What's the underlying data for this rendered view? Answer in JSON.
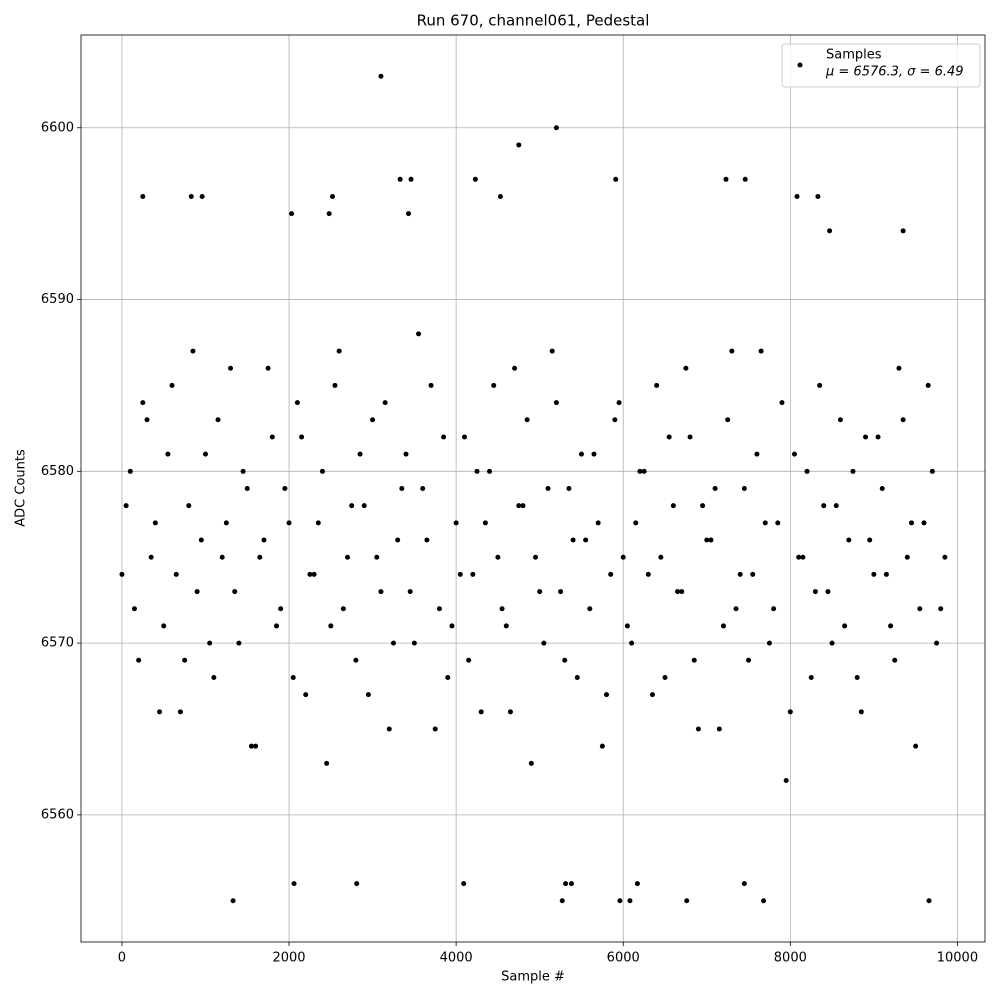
{
  "chart_data": {
    "type": "scatter",
    "title": "Run 670, channel061, Pedestal",
    "xlabel": "Sample #",
    "ylabel": "ADC Counts",
    "xlim": [
      -490,
      10330
    ],
    "ylim": [
      6552.6,
      6605.4
    ],
    "xticks": [
      0,
      2000,
      4000,
      6000,
      8000,
      10000
    ],
    "yticks": [
      6560,
      6570,
      6580,
      6590,
      6600
    ],
    "grid": true,
    "legend": "upper right",
    "series": [
      {
        "name": "Samples",
        "annotation": "μ = 6576.3, σ = 6.49",
        "color": "#000000",
        "x": [
          0,
          100,
          200,
          300,
          400,
          500,
          600,
          700,
          800,
          900,
          1000,
          1100,
          1200,
          1300,
          1400,
          1500,
          1600,
          1700,
          1800,
          1900,
          2000,
          2100,
          2200,
          2300,
          2400,
          2500,
          2600,
          2700,
          2800,
          2900,
          3000,
          3100,
          3200,
          3300,
          3400,
          3500,
          3600,
          3700,
          3800,
          3900,
          4000,
          4100,
          4200,
          4300,
          4400,
          4500,
          4600,
          4700,
          4800,
          4900,
          5000,
          5100,
          5200,
          5300,
          5400,
          5500,
          5600,
          5700,
          5800,
          5900,
          6000,
          6100,
          6200,
          6300,
          6400,
          6500,
          6600,
          6700,
          6800,
          6900,
          7000,
          7100,
          7200,
          7300,
          7400,
          7500,
          7600,
          7700,
          7800,
          7900,
          8000,
          8100,
          8200,
          8300,
          8400,
          8500,
          8600,
          8700,
          8800,
          8900,
          9000,
          9100,
          9200,
          9300,
          9400,
          9500,
          9600,
          9700,
          9800,
          50,
          150,
          250,
          350,
          450,
          550,
          650,
          750,
          850,
          950,
          1050,
          1150,
          1250,
          1350,
          1450,
          1550,
          1650,
          1750,
          1850,
          1950,
          2050,
          2150,
          2250,
          2350,
          2450,
          2550,
          2650,
          2750,
          2850,
          2950,
          3050,
          3150,
          3250,
          3350,
          3450,
          3550,
          3650,
          3750,
          3850,
          3950,
          4050,
          4150,
          4250,
          4350,
          4450,
          4550,
          4650,
          4750,
          4850,
          4950,
          5050,
          5150,
          5250,
          5350,
          5450,
          5550,
          5650,
          5750,
          5850,
          5950,
          6050,
          6150,
          6250,
          6350,
          6450,
          6550,
          6650,
          6750,
          6850,
          6950,
          7050,
          7150,
          7250,
          7350,
          7450,
          7550,
          7650,
          7750,
          7850,
          7950,
          8050,
          8150,
          8250,
          8350,
          8450,
          8550,
          8650,
          8750,
          8850,
          8950,
          9050,
          9150,
          9250,
          9350,
          9450,
          9550,
          9650,
          9750,
          9850,
          3100,
          5200,
          4750,
          1330,
          5270,
          5960,
          6080,
          6760,
          7680,
          9660,
          2810,
          4090,
          2060,
          5310,
          5380,
          6170,
          7450,
          250,
          830,
          960,
          2520,
          4530,
          8330,
          8080,
          3330,
          3460,
          4230,
          5910,
          7230,
          7460,
          2030,
          2480,
          3430,
          8470,
          9350
        ],
        "y": [
          6574,
          6580,
          6569,
          6583,
          6577,
          6571,
          6585,
          6566,
          6578,
          6573,
          6581,
          6568,
          6575,
          6586,
          6570,
          6579,
          6564,
          6576,
          6582,
          6572,
          6577,
          6584,
          6567,
          6574,
          6580,
          6571,
          6587,
          6575,
          6569,
          6578,
          6583,
          6573,
          6565,
          6576,
          6581,
          6570,
          6579,
          6585,
          6572,
          6568,
          6577,
          6582,
          6574,
          6566,
          6580,
          6575,
          6571,
          6586,
          6578,
          6563,
          6573,
          6579,
          6584,
          6569,
          6576,
          6581,
          6572,
          6577,
          6567,
          6583,
          6575,
          6570,
          6580,
          6574,
          6585,
          6568,
          6578,
          6573,
          6582,
          6565,
          6576,
          6579,
          6571,
          6587,
          6574,
          6569,
          6581,
          6577,
          6572,
          6584,
          6566,
          6575,
          6580,
          6573,
          6578,
          6570,
          6583,
          6576,
          6568,
          6582,
          6574,
          6579,
          6571,
          6586,
          6575,
          6564,
          6577,
          6580,
          6572,
          6578,
          6572,
          6584,
          6575,
          6566,
          6581,
          6574,
          6569,
          6587,
          6576,
          6570,
          6583,
          6577,
          6573,
          6580,
          6564,
          6575,
          6586,
          6571,
          6579,
          6568,
          6582,
          6574,
          6577,
          6563,
          6585,
          6572,
          6578,
          6581,
          6567,
          6575,
          6584,
          6570,
          6579,
          6573,
          6588,
          6576,
          6565,
          6582,
          6571,
          6574,
          6569,
          6580,
          6577,
          6585,
          6572,
          6566,
          6578,
          6583,
          6575,
          6570,
          6587,
          6573,
          6579,
          6568,
          6576,
          6581,
          6564,
          6574,
          6584,
          6571,
          6577,
          6580,
          6567,
          6575,
          6582,
          6573,
          6586,
          6569,
          6578,
          6576,
          6565,
          6583,
          6572,
          6579,
          6574,
          6587,
          6570,
          6577,
          6562,
          6581,
          6575,
          6568,
          6585,
          6573,
          6578,
          6571,
          6580,
          6566,
          6576,
          6582,
          6574,
          6569,
          6583,
          6577,
          6572,
          6585,
          6570,
          6575,
          6603,
          6600,
          6599,
          6555,
          6555,
          6555,
          6555,
          6555,
          6555,
          6555,
          6556,
          6556,
          6556,
          6556,
          6556,
          6556,
          6556,
          6596,
          6596,
          6596,
          6596,
          6596,
          6596,
          6596,
          6597,
          6597,
          6597,
          6597,
          6597,
          6597,
          6595,
          6595,
          6595,
          6594,
          6594
        ]
      }
    ]
  }
}
